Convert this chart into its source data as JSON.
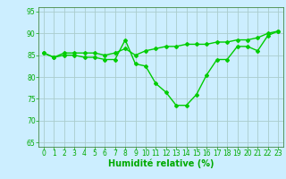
{
  "x": [
    0,
    1,
    2,
    3,
    4,
    5,
    6,
    7,
    8,
    9,
    10,
    11,
    12,
    13,
    14,
    15,
    16,
    17,
    18,
    19,
    20,
    21,
    22,
    23
  ],
  "line1": [
    85.5,
    84.5,
    85.5,
    85.5,
    85.5,
    85.5,
    85.0,
    85.5,
    86.5,
    85.0,
    86.0,
    86.5,
    87.0,
    87.0,
    87.5,
    87.5,
    87.5,
    88.0,
    88.0,
    88.5,
    88.5,
    89.0,
    90.0,
    90.5
  ],
  "line2": [
    85.5,
    84.5,
    85.0,
    85.0,
    84.5,
    84.5,
    84.0,
    84.0,
    88.5,
    83.0,
    82.5,
    78.5,
    76.5,
    73.5,
    73.5,
    76.0,
    80.5,
    84.0,
    84.0,
    87.0,
    87.0,
    86.0,
    89.5,
    90.5
  ],
  "xlim": [
    -0.5,
    23.5
  ],
  "ylim": [
    64,
    96
  ],
  "yticks": [
    65,
    70,
    75,
    80,
    85,
    90,
    95
  ],
  "xticks": [
    0,
    1,
    2,
    3,
    4,
    5,
    6,
    7,
    8,
    9,
    10,
    11,
    12,
    13,
    14,
    15,
    16,
    17,
    18,
    19,
    20,
    21,
    22,
    23
  ],
  "xlabel": "Humidité relative (%)",
  "line_color": "#00cc00",
  "bg_color": "#cceeff",
  "grid_color": "#aacccc",
  "tick_color": "#00aa00",
  "label_color": "#00aa00",
  "line_width": 1.0,
  "marker": "D",
  "marker_size": 2.0,
  "tick_fontsize": 5.5,
  "label_fontsize": 7.0
}
